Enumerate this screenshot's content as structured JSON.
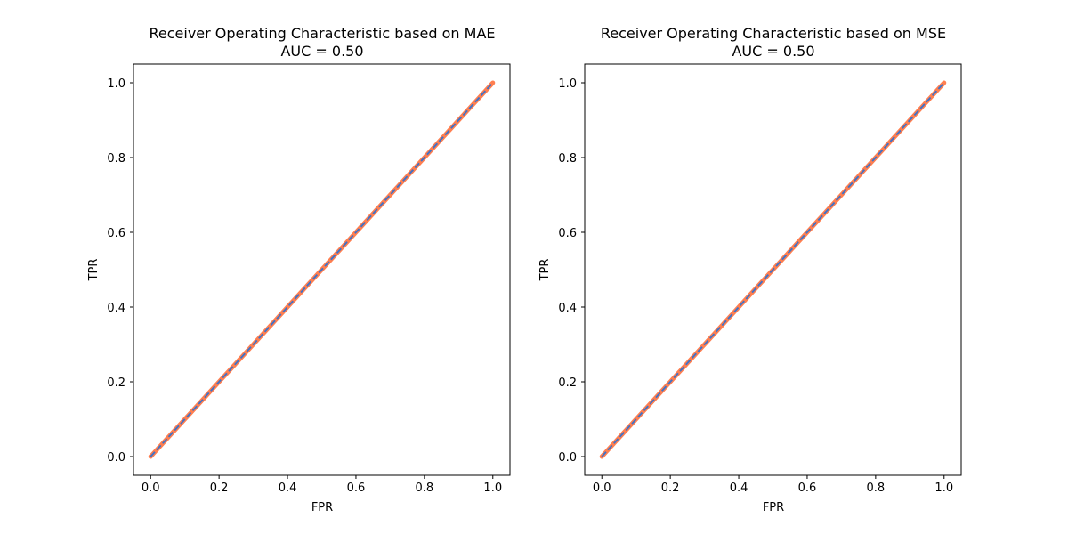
{
  "colors": {
    "roc_line": "#ff7f50",
    "diagonal_line": "#4472c4",
    "axes": "#000000"
  },
  "chart_data": [
    {
      "type": "line",
      "title": "Receiver Operating Characteristic based on MAE",
      "subtitle": "AUC = 0.50",
      "xlabel": "FPR",
      "ylabel": "TPR",
      "xlim": [
        -0.05,
        1.05
      ],
      "ylim": [
        -0.05,
        1.05
      ],
      "xticks": [
        "0.0",
        "0.2",
        "0.4",
        "0.6",
        "0.8",
        "1.0"
      ],
      "yticks": [
        "0.0",
        "0.2",
        "0.4",
        "0.6",
        "0.8",
        "1.0"
      ],
      "grid": false,
      "series": [
        {
          "x": [
            0.0,
            1.0
          ],
          "y": [
            0.0,
            1.0
          ],
          "style": "solid"
        },
        {
          "x": [
            0.0,
            1.0
          ],
          "y": [
            0.0,
            1.0
          ],
          "style": "dashed"
        }
      ]
    },
    {
      "type": "line",
      "title": "Receiver Operating Characteristic based on MSE",
      "subtitle": "AUC = 0.50",
      "xlabel": "FPR",
      "ylabel": "TPR",
      "xlim": [
        -0.05,
        1.05
      ],
      "ylim": [
        -0.05,
        1.05
      ],
      "xticks": [
        "0.0",
        "0.2",
        "0.4",
        "0.6",
        "0.8",
        "1.0"
      ],
      "yticks": [
        "0.0",
        "0.2",
        "0.4",
        "0.6",
        "0.8",
        "1.0"
      ],
      "grid": false,
      "series": [
        {
          "x": [
            0.0,
            1.0
          ],
          "y": [
            0.0,
            1.0
          ],
          "style": "solid"
        },
        {
          "x": [
            0.0,
            1.0
          ],
          "y": [
            0.0,
            1.0
          ],
          "style": "dashed"
        }
      ]
    }
  ]
}
